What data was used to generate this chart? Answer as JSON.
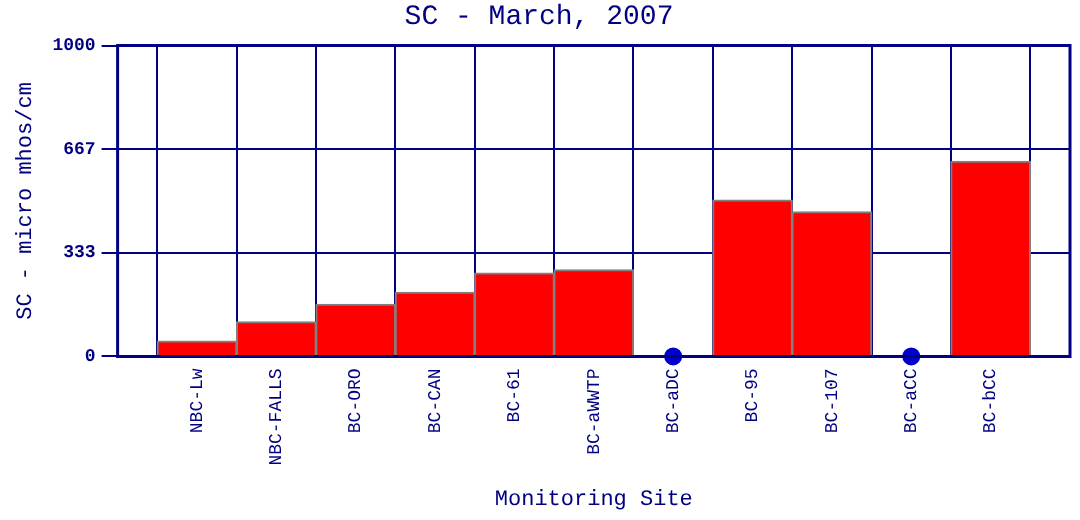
{
  "chart_data": {
    "type": "bar",
    "title": "SC - March, 2007",
    "xlabel": "Monitoring Site",
    "ylabel": "SC - micro mhos/cm",
    "categories": [
      "NBC-Lw",
      "NBC-FALLS",
      "BC-ORO",
      "BC-CAN",
      "BC-61",
      "BC-aWWTP",
      "BC-aDC",
      "BC-95",
      "BC-107",
      "BC-aCC",
      "BC-bCC"
    ],
    "series": [
      {
        "color": "#ff0000",
        "values": [
          49,
          111,
          167,
          206,
          268,
          278,
          null,
          503,
          465,
          null,
          627
        ]
      },
      {
        "type": "scatter",
        "color": "#0000cc",
        "marker": "circle",
        "values": [
          null,
          null,
          null,
          null,
          null,
          null,
          0,
          null,
          null,
          0,
          null
        ]
      }
    ],
    "ylim": [
      0,
      1000
    ],
    "yticks": [
      0,
      333,
      667,
      1000
    ],
    "grid": true,
    "legend": false
  }
}
